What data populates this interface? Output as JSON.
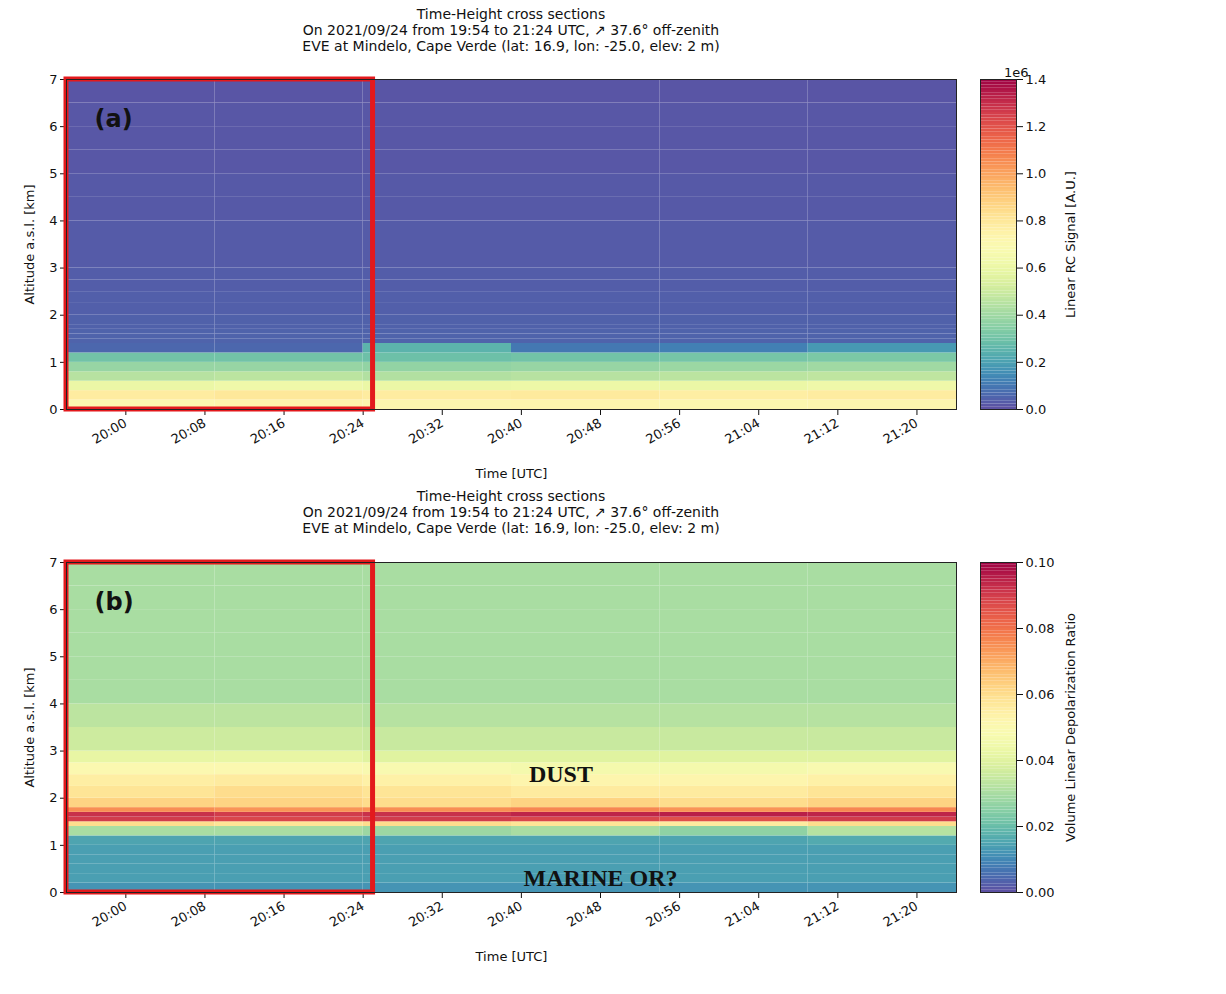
{
  "chart_data": [
    {
      "type": "heatmap",
      "panel_label": "(a)",
      "title": "Time-Height cross sections",
      "subtitle": [
        "On 2021/09/24 from 19:54 to 21:24 UTC, ↗ 37.6° off-zenith",
        "EVE at Mindelo, Cape Verde (lat: 16.9, lon: -25.0, elev: 2 m)"
      ],
      "x_label": "Time [UTC]",
      "y_label": "Altitude a.s.l. [km]",
      "xlim": [
        "2021-09-24T19:54:00Z",
        "2021-09-24T21:24:00Z"
      ],
      "xticks": [
        {
          "value": "2021-09-24T20:00:00Z",
          "label": "20:00"
        },
        {
          "value": "2021-09-24T20:08:00Z",
          "label": "20:08"
        },
        {
          "value": "2021-09-24T20:16:00Z",
          "label": "20:16"
        },
        {
          "value": "2021-09-24T20:24:00Z",
          "label": "20:24"
        },
        {
          "value": "2021-09-24T20:32:00Z",
          "label": "20:32"
        },
        {
          "value": "2021-09-24T20:40:00Z",
          "label": "20:40"
        },
        {
          "value": "2021-09-24T20:48:00Z",
          "label": "20:48"
        },
        {
          "value": "2021-09-24T20:56:00Z",
          "label": "20:56"
        },
        {
          "value": "2021-09-24T21:04:00Z",
          "label": "21:04"
        },
        {
          "value": "2021-09-24T21:12:00Z",
          "label": "21:12"
        },
        {
          "value": "2021-09-24T21:20:00Z",
          "label": "21:20"
        }
      ],
      "ylim": [
        0,
        7
      ],
      "yticks": [
        0,
        1,
        2,
        3,
        4,
        5,
        6,
        7
      ],
      "x_edges": [
        "2021-09-24T19:54:00Z",
        "2021-09-24T20:09:00Z",
        "2021-09-24T20:24:00Z",
        "2021-09-24T20:39:00Z",
        "2021-09-24T20:54:00Z",
        "2021-09-24T21:09:00Z",
        "2021-09-24T21:24:00Z"
      ],
      "y_edges": [
        0,
        0.2,
        0.4,
        0.6,
        0.8,
        1.0,
        1.2,
        1.4,
        1.5,
        1.6,
        1.7,
        1.8,
        2.0,
        2.25,
        2.5,
        2.75,
        3,
        3.5,
        4,
        4.5,
        5,
        5.5,
        6,
        6.5,
        7
      ],
      "cells": [
        [
          0.72,
          0.74,
          0.72,
          0.73,
          0.71,
          0.72
        ],
        [
          0.78,
          0.8,
          0.78,
          0.79,
          0.77,
          0.78
        ],
        [
          0.6,
          0.62,
          0.6,
          0.61,
          0.6,
          0.62
        ],
        [
          0.45,
          0.46,
          0.44,
          0.45,
          0.46,
          0.47
        ],
        [
          0.38,
          0.38,
          0.37,
          0.38,
          0.39,
          0.4
        ],
        [
          0.3,
          0.3,
          0.29,
          0.3,
          0.31,
          0.32
        ],
        [
          0.06,
          0.06,
          0.25,
          0.1,
          0.12,
          0.18
        ],
        [
          0.05,
          0.05,
          0.05,
          0.05,
          0.05,
          0.05
        ],
        [
          0.05,
          0.05,
          0.05,
          0.05,
          0.05,
          0.05
        ],
        [
          0.05,
          0.05,
          0.05,
          0.05,
          0.05,
          0.05
        ],
        [
          0.045,
          0.045,
          0.045,
          0.045,
          0.045,
          0.045
        ],
        [
          0.045,
          0.045,
          0.045,
          0.045,
          0.045,
          0.045
        ],
        [
          0.04,
          0.04,
          0.04,
          0.04,
          0.04,
          0.04
        ],
        [
          0.04,
          0.04,
          0.04,
          0.04,
          0.04,
          0.04
        ],
        [
          0.035,
          0.035,
          0.035,
          0.035,
          0.035,
          0.035
        ],
        [
          0.035,
          0.035,
          0.035,
          0.035,
          0.035,
          0.035
        ],
        [
          0.03,
          0.03,
          0.03,
          0.03,
          0.03,
          0.03
        ],
        [
          0.03,
          0.03,
          0.03,
          0.03,
          0.03,
          0.03
        ],
        [
          0.025,
          0.025,
          0.025,
          0.025,
          0.025,
          0.025
        ],
        [
          0.025,
          0.025,
          0.025,
          0.025,
          0.025,
          0.025
        ],
        [
          0.02,
          0.02,
          0.02,
          0.02,
          0.02,
          0.02
        ],
        [
          0.02,
          0.02,
          0.02,
          0.02,
          0.02,
          0.02
        ],
        [
          0.02,
          0.02,
          0.02,
          0.02,
          0.02,
          0.02
        ],
        [
          0.015,
          0.015,
          0.015,
          0.015,
          0.015,
          0.015
        ]
      ],
      "colorbar": {
        "label": "Linear RC Signal [A.U.]",
        "multiplier": "1e6",
        "range": [
          0,
          1.4
        ],
        "ticks": [
          {
            "value": 0,
            "label": "0.0"
          },
          {
            "value": 0.2,
            "label": "0.2"
          },
          {
            "value": 0.4,
            "label": "0.4"
          },
          {
            "value": 0.6,
            "label": "0.6"
          },
          {
            "value": 0.8,
            "label": "0.8"
          },
          {
            "value": 1.0,
            "label": "1.0"
          },
          {
            "value": 1.2,
            "label": "1.2"
          },
          {
            "value": 1.4,
            "label": "1.4"
          }
        ]
      },
      "highlight": {
        "xlim": [
          "2021-09-24T19:54:00Z",
          "2021-09-24T20:25:00Z"
        ],
        "color": "#e3191c"
      },
      "annotations": []
    },
    {
      "type": "heatmap",
      "panel_label": "(b)",
      "title": "Time-Height cross sections",
      "subtitle": [
        "On 2021/09/24 from 19:54 to 21:24 UTC, ↗ 37.6° off-zenith",
        "EVE at Mindelo, Cape Verde (lat: 16.9, lon: -25.0, elev: 2 m)"
      ],
      "x_label": "Time [UTC]",
      "y_label": "Altitude a.s.l. [km]",
      "xlim": [
        "2021-09-24T19:54:00Z",
        "2021-09-24T21:24:00Z"
      ],
      "xticks": [
        {
          "value": "2021-09-24T20:00:00Z",
          "label": "20:00"
        },
        {
          "value": "2021-09-24T20:08:00Z",
          "label": "20:08"
        },
        {
          "value": "2021-09-24T20:16:00Z",
          "label": "20:16"
        },
        {
          "value": "2021-09-24T20:24:00Z",
          "label": "20:24"
        },
        {
          "value": "2021-09-24T20:32:00Z",
          "label": "20:32"
        },
        {
          "value": "2021-09-24T20:40:00Z",
          "label": "20:40"
        },
        {
          "value": "2021-09-24T20:48:00Z",
          "label": "20:48"
        },
        {
          "value": "2021-09-24T20:56:00Z",
          "label": "20:56"
        },
        {
          "value": "2021-09-24T21:04:00Z",
          "label": "21:04"
        },
        {
          "value": "2021-09-24T21:12:00Z",
          "label": "21:12"
        },
        {
          "value": "2021-09-24T21:20:00Z",
          "label": "21:20"
        }
      ],
      "ylim": [
        0,
        7
      ],
      "yticks": [
        0,
        1,
        2,
        3,
        4,
        5,
        6,
        7
      ],
      "x_edges": [
        "2021-09-24T19:54:00Z",
        "2021-09-24T20:09:00Z",
        "2021-09-24T20:24:00Z",
        "2021-09-24T20:39:00Z",
        "2021-09-24T20:54:00Z",
        "2021-09-24T21:09:00Z",
        "2021-09-24T21:24:00Z"
      ],
      "y_edges": [
        0,
        0.2,
        0.4,
        0.6,
        0.8,
        1.0,
        1.2,
        1.4,
        1.5,
        1.6,
        1.7,
        1.8,
        2.0,
        2.25,
        2.5,
        2.75,
        3,
        3.5,
        4,
        4.5,
        5,
        5.5,
        6,
        6.5,
        7
      ],
      "cells": [
        [
          0.012,
          0.012,
          0.012,
          0.012,
          0.012,
          0.012
        ],
        [
          0.014,
          0.014,
          0.014,
          0.014,
          0.014,
          0.014
        ],
        [
          0.014,
          0.014,
          0.014,
          0.014,
          0.014,
          0.014
        ],
        [
          0.014,
          0.014,
          0.014,
          0.014,
          0.014,
          0.014
        ],
        [
          0.014,
          0.014,
          0.014,
          0.014,
          0.014,
          0.014
        ],
        [
          0.015,
          0.015,
          0.015,
          0.015,
          0.015,
          0.016
        ],
        [
          0.03,
          0.03,
          0.028,
          0.03,
          0.026,
          0.032
        ],
        [
          0.06,
          0.058,
          0.06,
          0.058,
          0.056,
          0.06
        ],
        [
          0.09,
          0.088,
          0.09,
          0.088,
          0.086,
          0.09
        ],
        [
          0.092,
          0.09,
          0.092,
          0.094,
          0.095,
          0.094
        ],
        [
          0.075,
          0.074,
          0.075,
          0.076,
          0.074,
          0.076
        ],
        [
          0.062,
          0.062,
          0.06,
          0.062,
          0.06,
          0.062
        ],
        [
          0.058,
          0.06,
          0.058,
          0.056,
          0.056,
          0.058
        ],
        [
          0.055,
          0.056,
          0.054,
          0.052,
          0.052,
          0.054
        ],
        [
          0.05,
          0.05,
          0.048,
          0.046,
          0.046,
          0.048
        ],
        [
          0.042,
          0.042,
          0.04,
          0.04,
          0.04,
          0.04
        ],
        [
          0.036,
          0.036,
          0.035,
          0.035,
          0.035,
          0.035
        ],
        [
          0.033,
          0.033,
          0.032,
          0.032,
          0.032,
          0.032
        ],
        [
          0.03,
          0.03,
          0.03,
          0.03,
          0.03,
          0.03
        ],
        [
          0.03,
          0.03,
          0.03,
          0.03,
          0.03,
          0.03
        ],
        [
          0.03,
          0.03,
          0.03,
          0.03,
          0.03,
          0.03
        ],
        [
          0.03,
          0.03,
          0.03,
          0.03,
          0.03,
          0.03
        ],
        [
          0.03,
          0.03,
          0.03,
          0.03,
          0.03,
          0.03
        ],
        [
          0.03,
          0.03,
          0.03,
          0.03,
          0.03,
          0.03
        ]
      ],
      "colorbar": {
        "label": "Volume Linear Depolarization Ratio",
        "range": [
          0,
          0.1
        ],
        "ticks": [
          {
            "value": 0,
            "label": "0.00"
          },
          {
            "value": 0.02,
            "label": "0.02"
          },
          {
            "value": 0.04,
            "label": "0.04"
          },
          {
            "value": 0.06,
            "label": "0.06"
          },
          {
            "value": 0.08,
            "label": "0.08"
          },
          {
            "value": 0.1,
            "label": "0.10"
          }
        ]
      },
      "highlight": {
        "xlim": [
          "2021-09-24T19:54:00Z",
          "2021-09-24T20:25:00Z"
        ],
        "color": "#e3191c"
      },
      "annotations": [
        {
          "text": "DUST",
          "x": "2021-09-24T20:44:00Z",
          "y": 2.5
        },
        {
          "text": "MARINE OR?",
          "x": "2021-09-24T20:48:00Z",
          "y": 0.3
        }
      ]
    }
  ]
}
